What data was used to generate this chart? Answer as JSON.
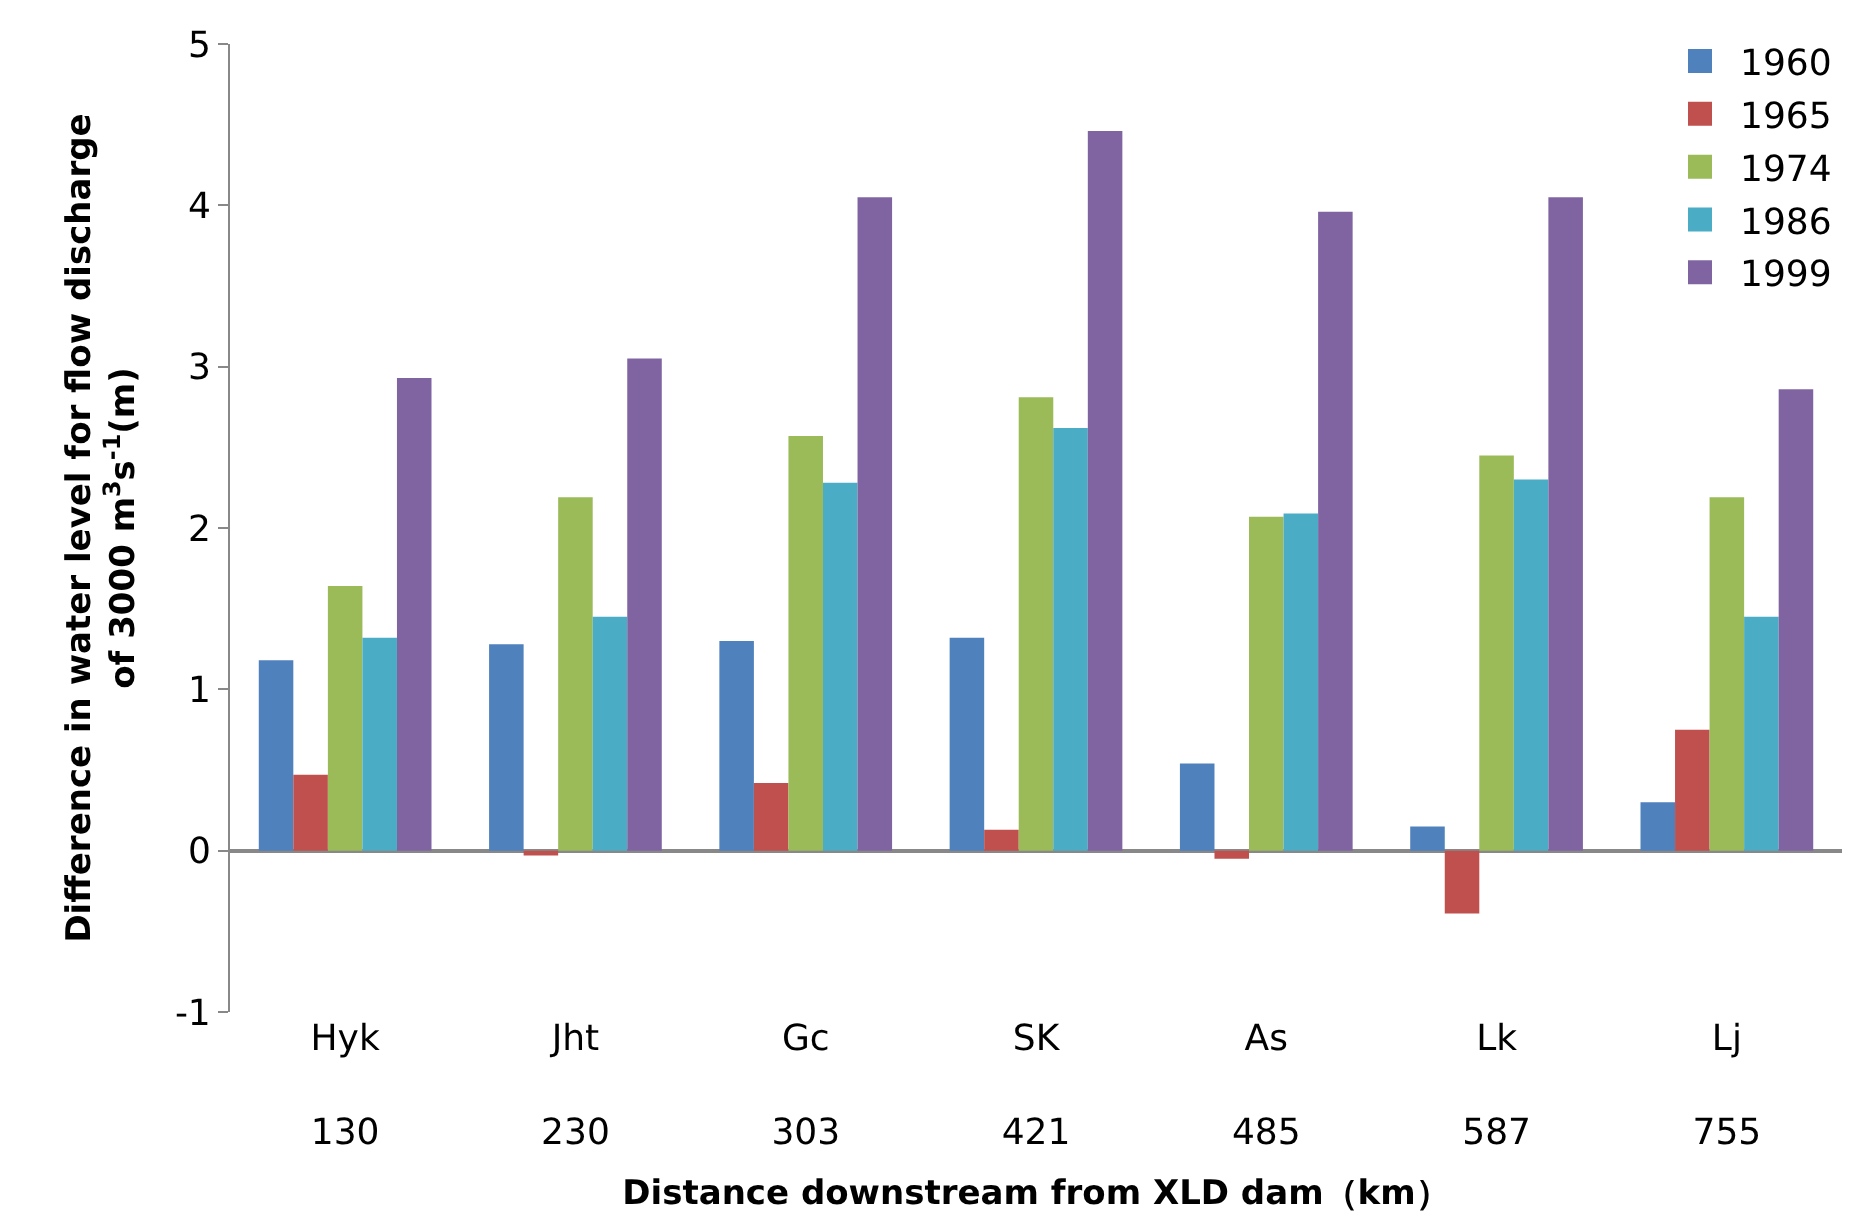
{
  "chart_data": {
    "type": "bar",
    "categories": [
      "Hyk\n\n130",
      "Jht\n\n230",
      "Gc\n\n303",
      "SK\n\n421",
      "As\n\n485",
      "Lk\n\n587",
      "Lj\n\n755"
    ],
    "series": [
      {
        "name": "1960",
        "color": "#4f81bd",
        "values": [
          1.18,
          1.28,
          1.3,
          1.32,
          0.54,
          0.15,
          0.3
        ]
      },
      {
        "name": "1965",
        "color": "#c0504d",
        "values": [
          0.47,
          -0.03,
          0.42,
          0.13,
          -0.05,
          -0.39,
          0.75
        ]
      },
      {
        "name": "1974",
        "color": "#9bbb59",
        "values": [
          1.64,
          2.19,
          2.57,
          2.81,
          2.07,
          2.45,
          2.19
        ]
      },
      {
        "name": "1986",
        "color": "#4bacc6",
        "values": [
          1.32,
          1.45,
          2.28,
          2.62,
          2.09,
          2.3,
          1.45
        ]
      },
      {
        "name": "1999",
        "color": "#8064a2",
        "values": [
          2.93,
          3.05,
          4.05,
          4.46,
          3.96,
          4.05,
          2.86
        ]
      }
    ],
    "ylim": [
      -1,
      5
    ],
    "yticks": [
      -1,
      0,
      1,
      2,
      3,
      4,
      5
    ],
    "xlabel": "Distance downstream from XLD dam（km）",
    "ylabel": "Difference in water level for flow discharge\nof 3000 m$^{3}$s$^{-1}$(m)",
    "legend": "top right"
  }
}
